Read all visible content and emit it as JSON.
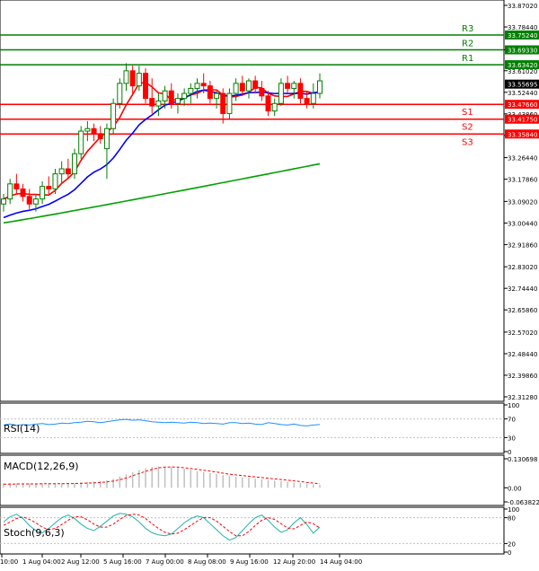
{
  "chart_data": {
    "type": "candlestick",
    "main": {
      "y_ticks": [
        "33.87020",
        "33.78440",
        "33.69330",
        "33.61020",
        "33.52440",
        "33.43860",
        "33.35280",
        "33.26440",
        "33.17860",
        "33.09020",
        "33.00440",
        "32.91860",
        "32.83020",
        "32.74440",
        "32.65860",
        "32.57020",
        "32.48440",
        "32.39860",
        "32.31280"
      ],
      "ylim": [
        32.3128,
        33.8702
      ],
      "price": "33.55695",
      "levels": [
        {
          "name": "R3",
          "value": 33.7524,
          "label": "33.75240",
          "color": "#008000"
        },
        {
          "name": "R2",
          "value": 33.6933,
          "label": "33.69330",
          "color": "#008000"
        },
        {
          "name": "R1",
          "value": 33.6342,
          "label": "33.63420",
          "color": "#008000"
        },
        {
          "name": "S1",
          "value": 33.4766,
          "label": "33.47660",
          "color": "#ff0000"
        },
        {
          "name": "S2",
          "value": 33.4175,
          "label": "33.41750",
          "color": "#ff0000"
        },
        {
          "name": "S3",
          "value": 33.3584,
          "label": "33.35840",
          "color": "#ff0000"
        }
      ],
      "candles": [
        [
          33.08,
          33.12,
          33.05,
          33.1
        ],
        [
          33.1,
          33.18,
          33.08,
          33.16
        ],
        [
          33.16,
          33.2,
          33.12,
          33.14
        ],
        [
          33.14,
          33.16,
          33.09,
          33.11
        ],
        [
          33.11,
          33.14,
          33.06,
          33.08
        ],
        [
          33.08,
          33.12,
          33.05,
          33.1
        ],
        [
          33.1,
          33.17,
          33.08,
          33.15
        ],
        [
          33.15,
          33.19,
          33.12,
          33.14
        ],
        [
          33.14,
          33.22,
          33.12,
          33.2
        ],
        [
          33.2,
          33.25,
          33.16,
          33.22
        ],
        [
          33.22,
          33.26,
          33.18,
          33.2
        ],
        [
          33.2,
          33.3,
          33.18,
          33.28
        ],
        [
          33.28,
          33.39,
          33.26,
          33.37
        ],
        [
          33.37,
          33.41,
          33.33,
          33.38
        ],
        [
          33.38,
          33.4,
          33.33,
          33.36
        ],
        [
          33.36,
          33.39,
          33.32,
          33.34
        ],
        [
          33.3,
          33.4,
          33.18,
          33.38
        ],
        [
          33.38,
          33.5,
          33.36,
          33.48
        ],
        [
          33.48,
          33.58,
          33.46,
          33.56
        ],
        [
          33.56,
          33.64,
          33.53,
          33.61
        ],
        [
          33.61,
          33.63,
          33.52,
          33.55
        ],
        [
          33.55,
          33.63,
          33.53,
          33.6
        ],
        [
          33.6,
          33.62,
          33.48,
          33.5
        ],
        [
          33.5,
          33.58,
          33.44,
          33.47
        ],
        [
          33.47,
          33.52,
          33.43,
          33.49
        ],
        [
          33.49,
          33.55,
          33.46,
          33.53
        ],
        [
          33.53,
          33.56,
          33.46,
          33.48
        ],
        [
          33.48,
          33.52,
          33.44,
          33.5
        ],
        [
          33.5,
          33.54,
          33.47,
          33.52
        ],
        [
          33.52,
          33.56,
          33.48,
          33.54
        ],
        [
          33.54,
          33.58,
          33.5,
          33.56
        ],
        [
          33.56,
          33.6,
          33.52,
          33.55
        ],
        [
          33.55,
          33.57,
          33.48,
          33.5
        ],
        [
          33.5,
          33.53,
          33.46,
          33.52
        ],
        [
          33.52,
          33.54,
          33.4,
          33.44
        ],
        [
          33.44,
          33.54,
          33.42,
          33.52
        ],
        [
          33.52,
          33.58,
          33.49,
          33.56
        ],
        [
          33.56,
          33.59,
          33.51,
          33.53
        ],
        [
          33.53,
          33.58,
          33.5,
          33.57
        ],
        [
          33.57,
          33.59,
          33.52,
          33.54
        ],
        [
          33.54,
          33.57,
          33.49,
          33.51
        ],
        [
          33.51,
          33.53,
          33.43,
          33.45
        ],
        [
          33.45,
          33.5,
          33.43,
          33.48
        ],
        [
          33.48,
          33.58,
          33.47,
          33.56
        ],
        [
          33.56,
          33.59,
          33.52,
          33.54
        ],
        [
          33.54,
          33.57,
          33.5,
          33.56
        ],
        [
          33.56,
          33.58,
          33.48,
          33.5
        ],
        [
          33.5,
          33.53,
          33.46,
          33.48
        ],
        [
          33.48,
          33.56,
          33.46,
          33.52
        ],
        [
          33.52,
          33.6,
          33.5,
          33.57
        ]
      ]
    },
    "rsi": {
      "label": "RSI(14)",
      "ticks": [
        "100",
        "70",
        "30",
        "0"
      ],
      "ylim": [
        0,
        100
      ],
      "values": [
        57,
        59,
        56,
        58,
        57,
        59,
        60,
        58,
        59,
        61,
        60,
        62,
        63,
        65,
        64,
        62,
        64,
        66,
        68,
        69,
        67,
        68,
        66,
        64,
        63,
        62,
        63,
        62,
        61,
        63,
        62,
        60,
        61,
        60,
        59,
        62,
        62,
        60,
        61,
        59,
        58,
        62,
        60,
        58,
        57,
        59,
        56,
        55,
        57,
        58
      ]
    },
    "macd": {
      "label": "MACD(12,26,9)",
      "ticks": [
        "0.130698",
        "0.00",
        "-0.063822"
      ],
      "ylim": [
        -0.063822,
        0.130698
      ],
      "hist": [
        0.02,
        0.02,
        0.02,
        0.02,
        0.02,
        0.02,
        0.02,
        0.02,
        0.02,
        0.021,
        0.021,
        0.022,
        0.024,
        0.026,
        0.028,
        0.03,
        0.034,
        0.04,
        0.05,
        0.06,
        0.07,
        0.08,
        0.088,
        0.094,
        0.096,
        0.095,
        0.093,
        0.09,
        0.085,
        0.08,
        0.075,
        0.07,
        0.066,
        0.062,
        0.057,
        0.052,
        0.05,
        0.047,
        0.044,
        0.041,
        0.038,
        0.035,
        0.032,
        0.029,
        0.026,
        0.023,
        0.021,
        0.018,
        0.015,
        0.012
      ],
      "signal": [
        0.016,
        0.016,
        0.017,
        0.017,
        0.017,
        0.017,
        0.018,
        0.018,
        0.018,
        0.018,
        0.019,
        0.019,
        0.02,
        0.021,
        0.022,
        0.024,
        0.026,
        0.03,
        0.036,
        0.044,
        0.054,
        0.064,
        0.074,
        0.082,
        0.09,
        0.093,
        0.094,
        0.093,
        0.09,
        0.087,
        0.083,
        0.079,
        0.075,
        0.071,
        0.066,
        0.061,
        0.058,
        0.055,
        0.052,
        0.049,
        0.046,
        0.043,
        0.04,
        0.037,
        0.034,
        0.031,
        0.028,
        0.024,
        0.021,
        0.018
      ]
    },
    "stoch": {
      "label": "Stoch(9,6,3)",
      "ticks": [
        "100",
        "80",
        "20",
        "0"
      ],
      "ylim": [
        0,
        100
      ],
      "main": [
        70,
        82,
        88,
        78,
        62,
        50,
        45,
        55,
        68,
        80,
        86,
        78,
        65,
        55,
        50,
        60,
        72,
        84,
        90,
        88,
        82,
        70,
        55,
        45,
        40,
        38,
        42,
        55,
        68,
        78,
        84,
        80,
        66,
        52,
        38,
        28,
        34,
        50,
        66,
        80,
        86,
        74,
        58,
        46,
        52,
        68,
        80,
        64,
        44,
        58
      ],
      "signal": [
        62,
        70,
        78,
        82,
        76,
        68,
        58,
        52,
        55,
        64,
        74,
        82,
        82,
        75,
        65,
        58,
        58,
        65,
        76,
        85,
        88,
        86,
        78,
        66,
        55,
        46,
        42,
        44,
        52,
        62,
        72,
        80,
        80,
        72,
        60,
        48,
        38,
        38,
        48,
        62,
        74,
        80,
        76,
        66,
        56,
        54,
        62,
        70,
        66,
        56
      ]
    },
    "x_labels": [
      "10:00",
      "1 Aug 04:00",
      "2 Aug 12:00",
      "5 Aug 16:00",
      "7 Aug 00:00",
      "8 Aug 08:00",
      "9 Aug 16:00",
      "12 Aug 20:00",
      "14 Aug 04:00"
    ]
  },
  "colors": {
    "bull": "#008000",
    "bear": "#ff0000",
    "ma_fast": "#ff0000",
    "ma_mid": "#0000ff",
    "ma_slow": "#00a000",
    "rsi_line": "#1e90ff",
    "macd_hist": "#c0c0c0",
    "macd_signal": "#ff0000",
    "stoch_main": "#20b2aa",
    "stoch_signal": "#ff0000",
    "price_label_bg": "#000000",
    "price_label_fg": "#ffffff"
  }
}
